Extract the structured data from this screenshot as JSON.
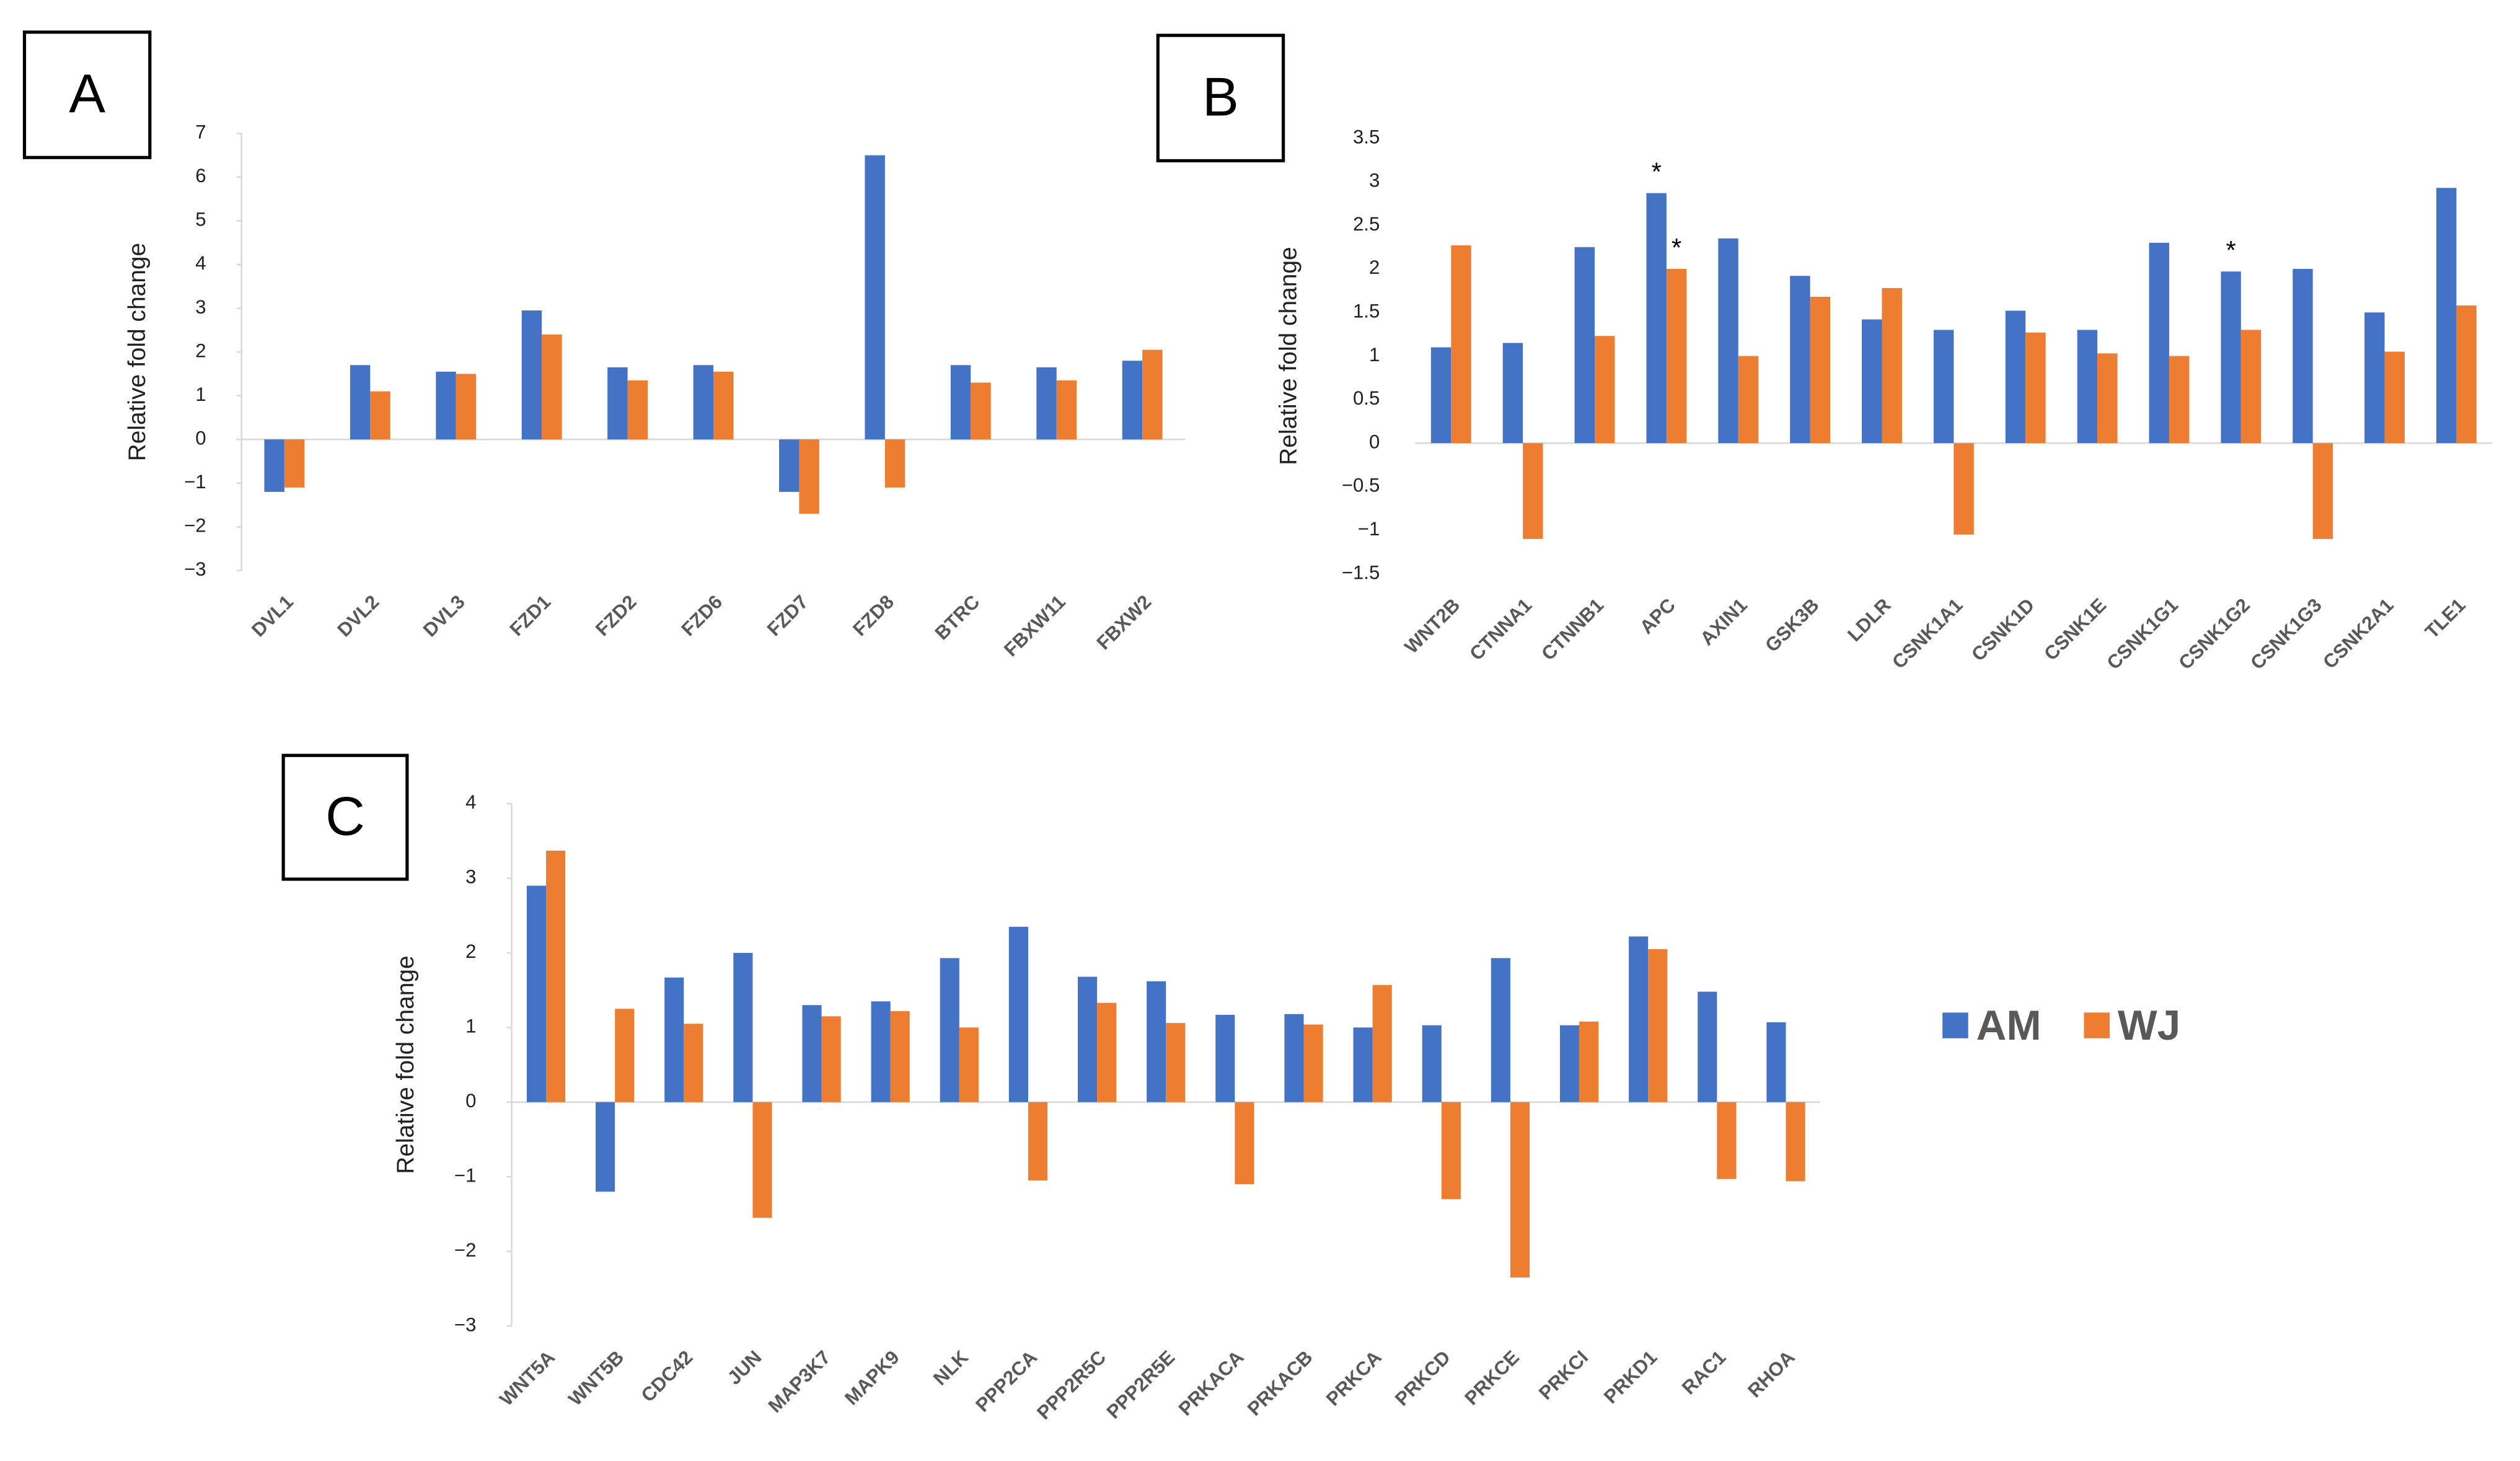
{
  "chart_data": [
    {
      "type": "bar",
      "label": "A",
      "y_label": "Relative fold change",
      "categories": [
        "DVL1",
        "DVL2",
        "DVL3",
        "FZD1",
        "FZD2",
        "FZD6",
        "FZD7",
        "FZD8",
        "BTRC",
        "FBXW11",
        "FBXW2"
      ],
      "series": [
        {
          "color": "#4472c4",
          "values": [
            -1.2,
            1.7,
            1.55,
            2.95,
            1.65,
            1.7,
            -1.2,
            6.5,
            1.7,
            1.65,
            1.8
          ]
        },
        {
          "color": "#ed7d31",
          "values": [
            -1.1,
            1.1,
            1.5,
            2.4,
            1.35,
            1.55,
            -1.7,
            -1.1,
            1.3,
            1.35,
            2.05
          ]
        }
      ],
      "ylim": [
        -3,
        7
      ],
      "yticks": [
        {
          "value": -3,
          "label": "−3"
        },
        {
          "value": -2,
          "label": "−2"
        },
        {
          "value": -1,
          "label": "−1"
        },
        0,
        1,
        2,
        3,
        4,
        5,
        6,
        7
      ]
    },
    {
      "type": "bar",
      "label": "B",
      "y_label": "Relative fold change",
      "categories": [
        "WNT2B",
        "CTNNA1",
        "CTNNB1",
        "APC",
        "AXIN1",
        "GSK3B",
        "LDLR",
        "CSNK1A1",
        "CSNK1D",
        "CSNK1E",
        "CSNK1G1",
        "CSNK1G2",
        "CSNK1G3",
        "CSNK2A1",
        "TLE1"
      ],
      "series": [
        {
          "color": "#4472c4",
          "values": [
            1.1,
            1.15,
            2.25,
            2.87,
            2.35,
            1.92,
            1.42,
            1.3,
            1.52,
            1.3,
            2.3,
            1.97,
            2.0,
            1.5,
            2.93
          ]
        },
        {
          "color": "#ed7d31",
          "values": [
            2.27,
            -1.1,
            1.23,
            2.0,
            1.0,
            1.68,
            1.78,
            -1.05,
            1.27,
            1.03,
            1.0,
            1.3,
            -1.1,
            1.05,
            1.58
          ]
        }
      ],
      "annotations": [
        {
          "text": "*",
          "category": "APC",
          "series_index": 0
        },
        {
          "text": "*",
          "category": "APC",
          "series_index": 1
        },
        {
          "text": "*",
          "category": "CSNK1G2",
          "series_index": 0
        }
      ],
      "ylim": [
        -1.5,
        3.5
      ],
      "yticks": [
        {
          "value": -1.5,
          "label": "−1.5"
        },
        {
          "value": -1,
          "label": "−1"
        },
        {
          "value": -0.5,
          "label": "−0.5"
        },
        0,
        0.5,
        1,
        1.5,
        2,
        2.5,
        3,
        3.5
      ]
    },
    {
      "type": "bar",
      "label": "C",
      "y_label": "Relative fold change",
      "categories": [
        "WNT5A",
        "WNT5B",
        "CDC42",
        "JUN",
        "MAP3K7",
        "MAPK9",
        "NLK",
        "PPP2CA",
        "PPP2R5C",
        "PPP2R5E",
        "PRKACA",
        "PRKACB",
        "PRKCA",
        "PRKCD",
        "PRKCE",
        "PRKCI",
        "PRKD1",
        "RAC1",
        "RHOA"
      ],
      "series": [
        {
          "name": "AM",
          "color": "#4472c4",
          "values": [
            2.9,
            -1.2,
            1.67,
            2.0,
            1.3,
            1.35,
            1.93,
            2.35,
            1.68,
            1.62,
            1.17,
            1.18,
            1.0,
            1.03,
            1.93,
            1.03,
            2.22,
            1.48,
            1.07
          ]
        },
        {
          "name": "WJ",
          "color": "#ed7d31",
          "values": [
            3.37,
            1.25,
            1.05,
            -1.55,
            1.15,
            1.22,
            1.0,
            -1.05,
            1.33,
            1.06,
            -1.1,
            1.04,
            1.57,
            -1.3,
            -2.35,
            1.08,
            2.05,
            -1.03,
            -1.06
          ]
        }
      ],
      "ylim": [
        -3,
        4
      ],
      "yticks": [
        {
          "value": -3,
          "label": "−3"
        },
        {
          "value": -2,
          "label": "−2"
        },
        {
          "value": -1,
          "label": "−1"
        },
        0,
        1,
        2,
        3,
        4
      ]
    }
  ]
}
